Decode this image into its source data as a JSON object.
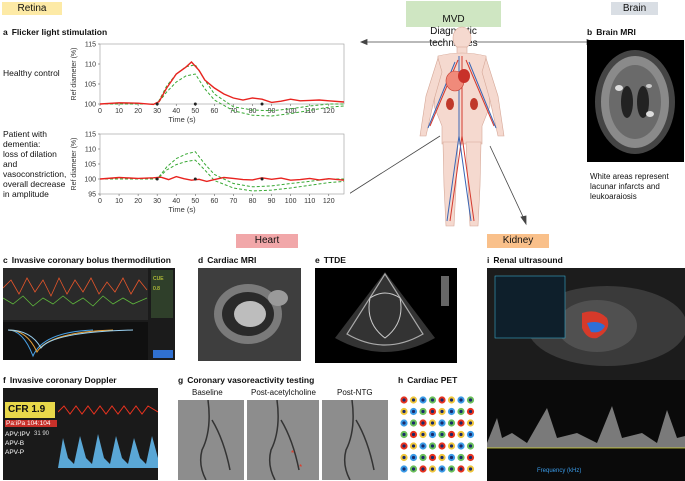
{
  "tags": {
    "retina": "Retina",
    "mvd": "MVD\nDiagnostic techniques",
    "brain": "Brain",
    "heart": "Heart",
    "kidney": "Kidney"
  },
  "colors": {
    "retina_tag": "#fdeaa6",
    "mvd_tag": "#cfe6c2",
    "brain_tag": "#d9dee4",
    "heart_tag": "#f1a7a9",
    "kidney_tag": "#f9c08a",
    "measured": "#e8231f",
    "reference": "#39a935"
  },
  "panels": {
    "a": {
      "letter": "a",
      "title": "Flicker light stimulation",
      "row1_label": "Healthy control",
      "row2_label": "Patient with\ndementia:\nloss of dilation\nand\nvasoconstriction,\noverall decrease\nin amplitude"
    },
    "b": {
      "letter": "b",
      "title": "Brain MRI",
      "caption": "White areas represent\nlacunar infarcts and\nleukoaraiosis"
    },
    "c": {
      "letter": "c",
      "title": "Invasive coronary bolus thermodilution"
    },
    "d": {
      "letter": "d",
      "title": "Cardiac MRI"
    },
    "e": {
      "letter": "e",
      "title": "TTDE"
    },
    "f": {
      "letter": "f",
      "title": "Invasive coronary Doppler",
      "cfr": "CFR  1.9",
      "pa": "Pa:iPa 104:104",
      "apv_ipv": "APV:IPV",
      "apv_nums": "31  90",
      "apv_b": "APV-B",
      "apv_p": "APV-P"
    },
    "g": {
      "letter": "g",
      "title": "Coronary vasoreactivity testing",
      "sub1": "Baseline",
      "sub2": "Post-acetylcholine",
      "sub3": "Post-NTG"
    },
    "h": {
      "letter": "h",
      "title": "Cardiac PET"
    },
    "i": {
      "letter": "i",
      "title": "Renal ultrasound",
      "freq": "Frequency (kHz)"
    }
  },
  "chart_data": [
    {
      "type": "line",
      "title": "",
      "ylabel": "Ref diameter (%)",
      "xlabel": "Time (s)",
      "ylim": [
        100,
        115
      ],
      "xlim": [
        0,
        128
      ],
      "xticks": [
        "0",
        "10",
        "20",
        "30",
        "40",
        "50",
        "60",
        "70",
        "80",
        "90",
        "100",
        "110",
        "120"
      ],
      "yticks": [
        "100",
        "105",
        "110",
        "115"
      ],
      "series": [
        {
          "values": [
            [
              0,
              100
            ],
            [
              10,
              100.3
            ],
            [
              20,
              100.2
            ],
            [
              28,
              99.9
            ],
            [
              31,
              100.6
            ],
            [
              35,
              104
            ],
            [
              40,
              107.5
            ],
            [
              45,
              109.2
            ],
            [
              48,
              110.5
            ],
            [
              52,
              108.4
            ],
            [
              55,
              106
            ],
            [
              60,
              104
            ],
            [
              65,
              102.5
            ],
            [
              70,
              101.5
            ],
            [
              75,
              101
            ],
            [
              80,
              101.5
            ],
            [
              85,
              101.2
            ],
            [
              90,
              100.4
            ],
            [
              95,
              100.7
            ],
            [
              100,
              101.2
            ],
            [
              105,
              100.8
            ],
            [
              110,
              100.9
            ],
            [
              115,
              101
            ],
            [
              120,
              100.8
            ],
            [
              128,
              100.5
            ]
          ]
        },
        {
          "values": [
            [
              0,
              100
            ],
            [
              30,
              100
            ],
            [
              35,
              104.5
            ],
            [
              40,
              107.5
            ],
            [
              45,
              109.3
            ],
            [
              50,
              109.8
            ],
            [
              55,
              106
            ],
            [
              60,
              102.5
            ],
            [
              70,
              99.3
            ],
            [
              80,
              98.5
            ],
            [
              90,
              98.3
            ],
            [
              100,
              98.8
            ],
            [
              110,
              99.5
            ],
            [
              120,
              100
            ],
            [
              128,
              100
            ]
          ]
        },
        {
          "values": [
            [
              0,
              100
            ],
            [
              30,
              100
            ],
            [
              35,
              103
            ],
            [
              40,
              105.5
            ],
            [
              45,
              107
            ],
            [
              50,
              107.5
            ],
            [
              55,
              103.8
            ],
            [
              60,
              101
            ],
            [
              70,
              98.3
            ],
            [
              80,
              97.2
            ],
            [
              90,
              97
            ],
            [
              100,
              97.6
            ],
            [
              110,
              98.4
            ],
            [
              120,
              99.2
            ],
            [
              128,
              99.5
            ]
          ]
        }
      ]
    },
    {
      "type": "line",
      "title": "",
      "ylabel": "Ref diameter (%)",
      "xlabel": "Time (s)",
      "ylim": [
        95,
        115
      ],
      "xlim": [
        0,
        128
      ],
      "xticks": [
        "0",
        "10",
        "20",
        "30",
        "40",
        "50",
        "60",
        "70",
        "80",
        "90",
        "100",
        "110",
        "120"
      ],
      "yticks": [
        "95",
        "100",
        "105",
        "110",
        "115"
      ],
      "series": [
        {
          "values": [
            [
              0,
              100
            ],
            [
              10,
              100.5
            ],
            [
              20,
              100.2
            ],
            [
              28,
              100.4
            ],
            [
              32,
              100.6
            ],
            [
              36,
              99.8
            ],
            [
              40,
              100.8
            ],
            [
              44,
              100.1
            ],
            [
              48,
              99.6
            ],
            [
              52,
              99.9
            ],
            [
              56,
              99.2
            ],
            [
              60,
              99.8
            ],
            [
              65,
              100.5
            ],
            [
              70,
              100.2
            ],
            [
              75,
              99.8
            ],
            [
              80,
              99.7
            ],
            [
              85,
              100.4
            ],
            [
              90,
              99.9
            ],
            [
              95,
              100.3
            ],
            [
              100,
              99.6
            ],
            [
              105,
              99.8
            ],
            [
              110,
              100.2
            ],
            [
              115,
              99.7
            ],
            [
              120,
              100.1
            ],
            [
              128,
              99.6
            ]
          ]
        },
        {
          "values": [
            [
              0,
              100
            ],
            [
              30,
              100
            ],
            [
              35,
              104
            ],
            [
              40,
              106.8
            ],
            [
              45,
              108.3
            ],
            [
              50,
              109.1
            ],
            [
              55,
              105
            ],
            [
              60,
              101.5
            ],
            [
              70,
              98.5
            ],
            [
              80,
              97.4
            ],
            [
              90,
              97.7
            ],
            [
              100,
              98.5
            ],
            [
              110,
              99.2
            ],
            [
              120,
              100
            ],
            [
              128,
              100
            ]
          ]
        },
        {
          "values": [
            [
              0,
              100
            ],
            [
              30,
              100
            ],
            [
              35,
              103
            ],
            [
              40,
              104.8
            ],
            [
              45,
              105.8
            ],
            [
              50,
              106.3
            ],
            [
              55,
              103
            ],
            [
              60,
              99.5
            ],
            [
              70,
              97
            ],
            [
              80,
              96
            ],
            [
              90,
              96.3
            ],
            [
              100,
              97
            ],
            [
              110,
              97.9
            ],
            [
              120,
              98.8
            ],
            [
              128,
              99.2
            ]
          ]
        }
      ]
    }
  ]
}
